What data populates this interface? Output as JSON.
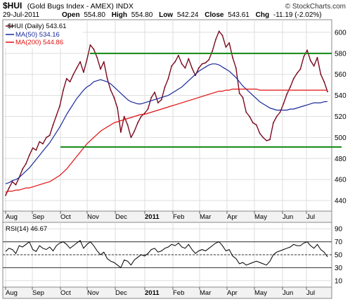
{
  "header": {
    "symbol": "$HUI",
    "name": "(Gold Bugs Index - AMEX) INDX",
    "date": "29-Jul-2011",
    "open_label": "Open",
    "open_value": "554.80",
    "high_label": "High",
    "high_value": "554.80",
    "low_label": "Low",
    "low_value": "542.24",
    "close_label": "Close",
    "close_value": "543.61",
    "chg_label": "Chg",
    "chg_value": "-11.19 (-2.02%)",
    "copyright": "© StockCharts.com"
  },
  "legend": {
    "price": "$HUI (Daily) 543.61",
    "ma50": "MA(50) 534.16",
    "ma200": "MA(200) 544.86"
  },
  "rsi_legend": "RSI(14) 46.67",
  "colors": {
    "price": "#7a0a1e",
    "ma50": "#1a2a9a",
    "ma200": "#e01010",
    "trend": "#118811",
    "grid": "#dedede",
    "rsi": "#000000",
    "rsi_guides": "#333333"
  },
  "chart_data": [
    {
      "type": "line",
      "title": "$HUI (Daily)",
      "subtitle": "Gold Bugs Index - AMEX",
      "ylim": [
        430,
        612
      ],
      "yticks": [
        440,
        460,
        480,
        500,
        520,
        540,
        560,
        580,
        600
      ],
      "xticks": [
        "Aug",
        "Sep",
        "Oct",
        "Nov",
        "Dec",
        "2011",
        "Feb",
        "Mar",
        "Apr",
        "May",
        "Jun",
        "Jul"
      ],
      "grid": true,
      "legend_position": "top-left",
      "series": [
        {
          "name": "$HUI",
          "values": [
            445,
            452,
            458,
            455,
            462,
            470,
            475,
            483,
            490,
            488,
            496,
            494,
            500,
            502,
            512,
            521,
            530,
            545,
            556,
            553,
            560,
            566,
            572,
            562,
            574,
            588,
            584,
            576,
            565,
            572,
            556,
            545,
            538,
            528,
            505,
            520,
            512,
            500,
            506,
            514,
            520,
            523,
            527,
            538,
            543,
            533,
            536,
            548,
            556,
            568,
            572,
            578,
            570,
            566,
            575,
            566,
            559,
            566,
            570,
            571,
            574,
            582,
            593,
            601,
            597,
            586,
            590,
            576,
            566,
            542,
            538,
            524,
            520,
            514,
            512,
            504,
            500,
            497,
            498,
            514,
            520,
            524,
            532,
            541,
            548,
            556,
            561,
            565,
            577,
            583,
            573,
            568,
            576,
            560,
            553,
            543.61
          ]
        },
        {
          "name": "MA(50)",
          "values": [
            456,
            457,
            459,
            460,
            462,
            465,
            468,
            471,
            475,
            479,
            483,
            487,
            491,
            495,
            500,
            505,
            510,
            516,
            522,
            527,
            532,
            537,
            541,
            545,
            548,
            550,
            553,
            554,
            555,
            554,
            553,
            551,
            548,
            545,
            542,
            539,
            536,
            534,
            533,
            532,
            532,
            533,
            534,
            535,
            536,
            537,
            538,
            539,
            540,
            542,
            544,
            546,
            548,
            551,
            554,
            557,
            560,
            563,
            565,
            567,
            569,
            570,
            570,
            569,
            567,
            565,
            563,
            560,
            557,
            553,
            549,
            546,
            543,
            540,
            537,
            534,
            532,
            530,
            528,
            527,
            526,
            526,
            526,
            526,
            527,
            527,
            528,
            529,
            530,
            531,
            532,
            533,
            533,
            533,
            534,
            534.16
          ]
        },
        {
          "name": "MA(200)",
          "values": [
            448,
            449,
            449,
            450,
            450,
            451,
            452,
            452,
            453,
            454,
            455,
            456,
            457,
            458,
            460,
            462,
            464,
            467,
            470,
            474,
            478,
            482,
            486,
            490,
            494,
            497,
            500,
            503,
            506,
            508,
            510,
            512,
            514,
            515,
            516,
            517,
            518,
            519,
            520,
            521,
            522,
            522,
            523,
            524,
            525,
            526,
            527,
            528,
            529,
            530,
            531,
            532,
            533,
            534,
            535,
            536,
            537,
            538,
            539,
            540,
            541,
            542,
            543,
            544,
            544,
            545,
            545,
            546,
            546,
            546,
            546,
            546,
            546,
            546,
            546,
            545,
            545,
            545,
            545,
            545,
            545,
            545,
            545,
            545,
            545,
            545,
            545,
            545,
            545,
            545,
            545,
            545,
            545,
            545,
            545,
            544.86
          ]
        },
        {
          "name": "Upper trendline",
          "values": [
            580,
            580
          ]
        },
        {
          "name": "Lower trendline",
          "values": [
            491,
            491
          ]
        }
      ]
    },
    {
      "type": "line",
      "title": "RSI(14)",
      "ylim": [
        0,
        100
      ],
      "yticks": [
        10,
        30,
        50,
        70,
        90
      ],
      "guides": [
        30,
        50,
        70
      ],
      "xticks": [
        "Aug",
        "Sep",
        "Oct",
        "Nov",
        "Dec",
        "2011",
        "Feb",
        "Mar",
        "Apr",
        "May",
        "Jun",
        "Jul"
      ],
      "series": [
        {
          "name": "RSI(14)",
          "values": [
            55,
            60,
            58,
            52,
            64,
            62,
            66,
            70,
            58,
            55,
            64,
            60,
            58,
            62,
            56,
            64,
            68,
            70,
            66,
            60,
            64,
            68,
            72,
            60,
            66,
            70,
            64,
            56,
            50,
            54,
            44,
            40,
            38,
            34,
            30,
            42,
            40,
            34,
            42,
            46,
            50,
            48,
            52,
            58,
            60,
            54,
            56,
            60,
            62,
            66,
            64,
            68,
            62,
            60,
            66,
            58,
            52,
            56,
            58,
            56,
            60,
            64,
            68,
            70,
            64,
            56,
            58,
            48,
            44,
            36,
            38,
            34,
            36,
            38,
            40,
            38,
            36,
            34,
            40,
            50,
            54,
            56,
            58,
            60,
            62,
            66,
            64,
            64,
            68,
            70,
            64,
            60,
            66,
            58,
            54,
            46.67
          ]
        }
      ]
    }
  ]
}
